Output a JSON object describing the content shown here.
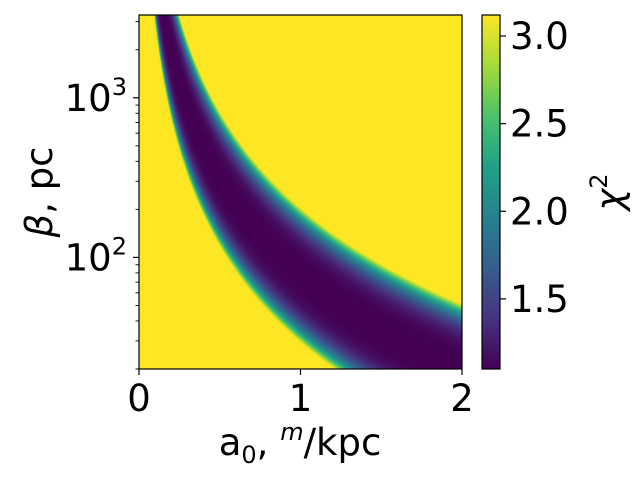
{
  "chart_data": {
    "type": "heatmap",
    "title": "",
    "xlabel": {
      "main": "a",
      "sub": "0",
      "sep": ", ",
      "sup": "m",
      "unit": "/kpc"
    },
    "ylabel": {
      "symbol": "β",
      "unit": ", pc"
    },
    "colorbar_label": {
      "base": "χ",
      "sup": "2"
    },
    "x_range": [
      0,
      2
    ],
    "y_range": [
      20,
      3300
    ],
    "y_scale": "log",
    "x_ticks": [
      {
        "value": 0,
        "label": "0"
      },
      {
        "value": 1,
        "label": "1"
      },
      {
        "value": 2,
        "label": "2"
      }
    ],
    "y_ticks": [
      {
        "value": 100,
        "base": "10",
        "exp": "2"
      },
      {
        "value": 1000,
        "base": "10",
        "exp": "3"
      }
    ],
    "colorbar_range": [
      1.1,
      3.12
    ],
    "colorbar_ticks": [
      {
        "value": 1.5,
        "label": "1.5"
      },
      {
        "value": 2.0,
        "label": "2.0"
      },
      {
        "value": 2.5,
        "label": "2.5"
      },
      {
        "value": 3.0,
        "label": "3.0"
      }
    ],
    "colormap": "viridis",
    "valley": {
      "relation": "a0 * beta^0.5 = const",
      "center_const": 8.8,
      "half_width_log10": 0.21,
      "min_value": 1.1,
      "max_value": 3.12
    },
    "grid": false
  }
}
